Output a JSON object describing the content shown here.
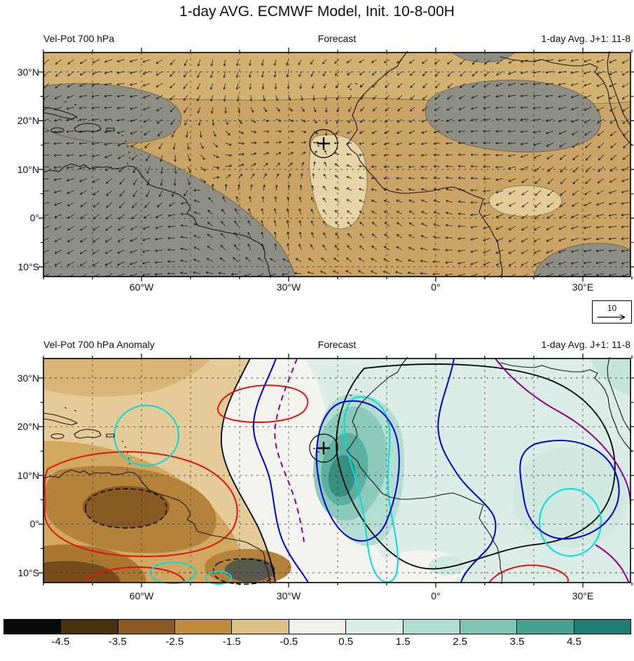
{
  "title": "1-day AVG. ECMWF Model, Init. 10-8-00H",
  "panels": [
    {
      "name": "Vel-Pot 700 hPa",
      "center_label": "Forecast",
      "valid_label": "1-day Avg. J+1: 11-8",
      "lat_ticks": [
        "30°N",
        "20°N",
        "10°N",
        "0°",
        "10°S"
      ],
      "lon_ticks": [
        "60°W",
        "30°W",
        "0°",
        "30°E"
      ],
      "reference_vector_label": "10"
    },
    {
      "name": "Vel-Pot 700 hPa Anomaly",
      "center_label": "Forecast",
      "valid_label": "1-day Avg. J+1: 11-8",
      "lat_ticks": [
        "30°N",
        "20°N",
        "10°N",
        "0°",
        "10°S"
      ],
      "lon_ticks": [
        "60°W",
        "30°W",
        "0°",
        "30°E"
      ]
    }
  ],
  "colorbar": {
    "labels": [
      "-4.5",
      "-3.5",
      "-2.5",
      "-1.5",
      "-0.5",
      "0.5",
      "1.5",
      "2.5",
      "3.5",
      "4.5"
    ],
    "colors": [
      "#0a0a0a",
      "#46300f",
      "#8a5a22",
      "#c08a3c",
      "#ddc083",
      "#f2f2ec",
      "#daeee8",
      "#b0dcd2",
      "#7fc4b6",
      "#48a294",
      "#1f7d72"
    ]
  },
  "chart_data": [
    {
      "type": "heatmap",
      "title": "Vel-Pot 700 hPa",
      "subtitle": "Forecast",
      "valid_time": "1-day Avg. J+1: 11-8",
      "x_ticks": [
        "60°W",
        "30°W",
        "0°",
        "30°E"
      ],
      "y_ticks": [
        "30°N",
        "20°N",
        "10°N",
        "0°",
        "10°S"
      ],
      "lon_range_deg": [
        -80,
        40
      ],
      "lat_range_deg": [
        -12,
        34
      ],
      "overlay": "divergent wind vector arrows on 10-deg dashed grid, reference arrow length = 10",
      "marker": {
        "symbol": "+",
        "lon_deg": -24,
        "lat_deg": 16
      },
      "shading_note": "velocity potential field shaded tan with gray regions over western Atlantic/South America, central-north Africa and southeastern corner"
    },
    {
      "type": "heatmap",
      "title": "Vel-Pot 700 hPa Anomaly",
      "subtitle": "Forecast",
      "valid_time": "1-day Avg. J+1: 11-8",
      "x_ticks": [
        "60°W",
        "30°W",
        "0°",
        "30°E"
      ],
      "y_ticks": [
        "30°N",
        "20°N",
        "10°N",
        "0°",
        "10°S"
      ],
      "lon_range_deg": [
        -80,
        40
      ],
      "lat_range_deg": [
        -12,
        34
      ],
      "scale_boundaries": [
        -4.5,
        -3.5,
        -2.5,
        -1.5,
        -0.5,
        0.5,
        1.5,
        2.5,
        3.5,
        4.5
      ],
      "marker": {
        "symbol": "+",
        "lon_deg": -24,
        "lat_deg": 16
      },
      "features": [
        {
          "region": "western tropical Atlantic / northern South America",
          "sign": "negative",
          "approx_value": -2.5
        },
        {
          "region": "near 35W 8S (dark core)",
          "sign": "negative",
          "approx_value": -4.5
        },
        {
          "region": "eastern tropical Atlantic near marker (24W, 16N)",
          "sign": "positive",
          "approx_value": 3.0
        },
        {
          "region": "central and eastern Africa",
          "sign": "positive",
          "approx_value": 1.0
        }
      ],
      "contour_line_colors": [
        "black",
        "red",
        "cyan",
        "blue",
        "purple"
      ]
    }
  ]
}
